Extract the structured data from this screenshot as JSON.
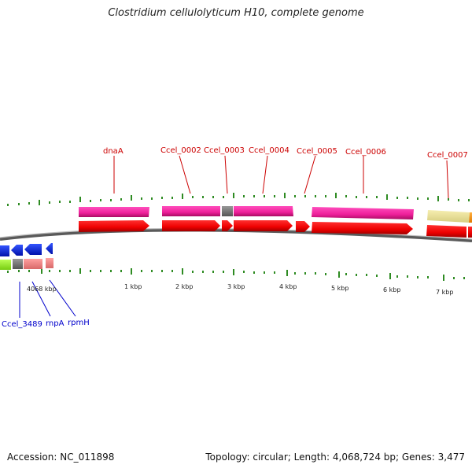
{
  "title": "Clostridium cellulolyticum H10, complete genome",
  "footer": {
    "accession": "Accession: NC_011898",
    "summary": "Topology: circular; Length: 4,068,724 bp; Genes: 3,477"
  },
  "scale_labels": [
    "4068 kbp",
    "1 kbp",
    "2 kbp",
    "3 kbp",
    "4 kbp",
    "5 kbp",
    "6 kbp",
    "7 kbp"
  ],
  "upper_gene_labels": [
    "dnaA",
    "Ccel_0002",
    "Ccel_0003",
    "Ccel_0004",
    "Ccel_0005",
    "Ccel_0006",
    "Ccel_0007"
  ],
  "lower_gene_labels": [
    "Ccel_3489",
    "rnpA",
    "rpmH"
  ],
  "colors": {
    "upper_label": "#cc0000",
    "lower_label": "#0000cc",
    "cds_forward": "#ee0000",
    "feature_pink": "#ee1f9a",
    "feature_gray": "#777777",
    "feature_khaki": "#ece49a",
    "feature_salmon": "#f08888",
    "feature_green": "#99ee22",
    "cds_reverse": "#0022ee",
    "tick": "#2e8b22",
    "backbone": "#888888"
  }
}
